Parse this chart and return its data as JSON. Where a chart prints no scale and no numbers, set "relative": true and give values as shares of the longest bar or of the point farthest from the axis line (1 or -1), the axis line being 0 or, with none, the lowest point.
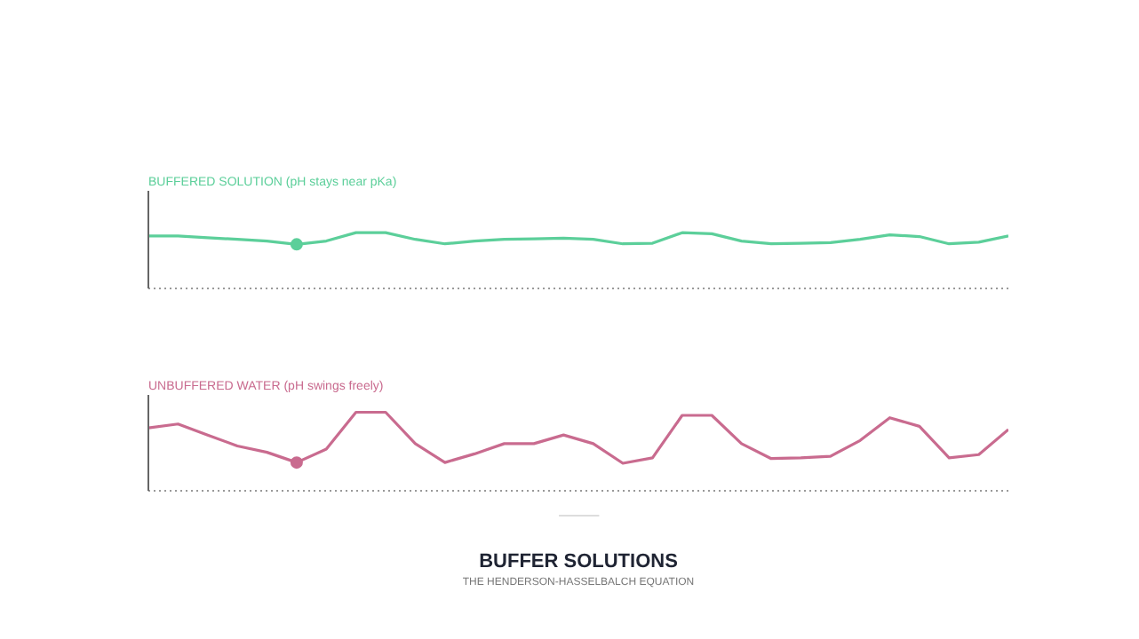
{
  "chart_data": [
    {
      "type": "line",
      "title": "BUFFERED SOLUTION (pH stays near pKa)",
      "relative": true,
      "categories": [
        null,
        null,
        null,
        null,
        null,
        null,
        null,
        null,
        null,
        null,
        null,
        null,
        null,
        null,
        null,
        null,
        null,
        null,
        null,
        null,
        null,
        null,
        null,
        null,
        null,
        null,
        null,
        null,
        null,
        null
      ],
      "series": [
        {
          "color": "#5ccf9a",
          "values": [
            0.94,
            0.94,
            0.91,
            0.88,
            0.85,
            0.79,
            0.85,
            1,
            1,
            0.88,
            0.8,
            0.85,
            0.88,
            0.89,
            0.9,
            0.88,
            0.8,
            0.81,
            1,
            0.98,
            0.85,
            0.8,
            0.81,
            0.82,
            0.88,
            0.96,
            0.93,
            0.8,
            0.83,
            0.94
          ]
        }
      ]
    },
    {
      "type": "line",
      "title": "UNBUFFERED WATER (pH swings freely)",
      "relative": true,
      "categories": [
        null,
        null,
        null,
        null,
        null,
        null,
        null,
        null,
        null,
        null,
        null,
        null,
        null,
        null,
        null,
        null,
        null,
        null,
        null,
        null,
        null,
        null,
        null,
        null,
        null,
        null,
        null,
        null,
        null,
        null
      ],
      "series": [
        {
          "color": "#c96b8f",
          "values": [
            0.8,
            0.85,
            0.71,
            0.57,
            0.49,
            0.36,
            0.53,
            1,
            1,
            0.6,
            0.36,
            0.47,
            0.6,
            0.6,
            0.71,
            0.6,
            0.35,
            0.42,
            0.96,
            0.96,
            0.6,
            0.41,
            0.42,
            0.44,
            0.64,
            0.93,
            0.82,
            0.42,
            0.46,
            0.78
          ]
        }
      ]
    },
    {
      "type": "other",
      "title": "BUFFER SOLUTIONS",
      "subtitle": "THE HENDERSON-HASSELBALCH EQUATION"
    }
  ]
}
